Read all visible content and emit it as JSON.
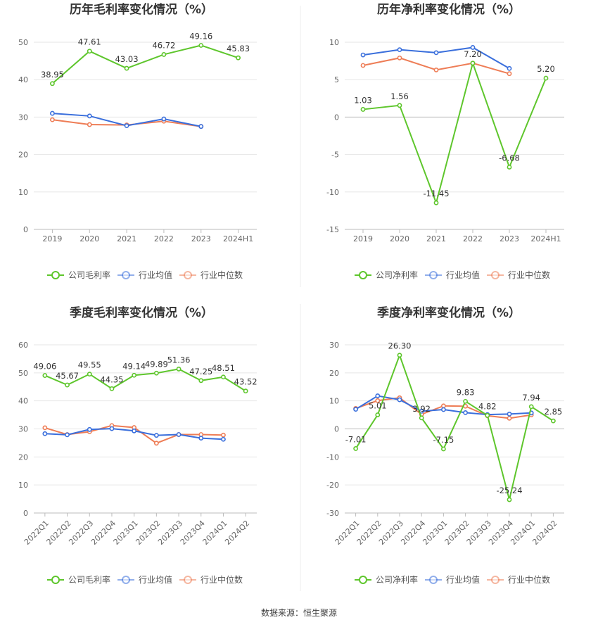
{
  "source_label": "数据来源：恒生聚源",
  "colors": {
    "company": "#5ec62c",
    "industry_avg": "#3a6fdc",
    "industry_median": "#ee7d56"
  },
  "chart_data": [
    {
      "type": "line",
      "title": "历年毛利率变化情况（%）",
      "categories": [
        "2019",
        "2020",
        "2021",
        "2022",
        "2023",
        "2024H1"
      ],
      "ylim": [
        0,
        50
      ],
      "yticks": [
        0,
        10,
        20,
        30,
        40,
        50
      ],
      "grid": true,
      "legend_position": "bottom",
      "series": [
        {
          "name": "公司毛利率",
          "values": [
            38.95,
            47.61,
            43.03,
            46.72,
            49.16,
            45.83
          ],
          "labels": [
            "38.95",
            "47.61",
            "43.03",
            "46.72",
            "49.16",
            "45.83"
          ]
        },
        {
          "name": "行业均值",
          "values": [
            31.0,
            30.3,
            27.7,
            29.5,
            27.5,
            null
          ]
        },
        {
          "name": "行业中位数",
          "values": [
            29.3,
            28.0,
            27.9,
            28.9,
            27.5,
            null
          ]
        }
      ]
    },
    {
      "type": "line",
      "title": "历年净利率变化情况（%）",
      "categories": [
        "2019",
        "2020",
        "2021",
        "2022",
        "2023",
        "2024H1"
      ],
      "ylim": [
        -15,
        10
      ],
      "yticks": [
        -15,
        -10,
        -5,
        0,
        5,
        10
      ],
      "grid": true,
      "legend_position": "bottom",
      "series": [
        {
          "name": "公司净利率",
          "values": [
            1.03,
            1.56,
            -11.45,
            7.2,
            -6.68,
            5.2
          ],
          "labels": [
            "1.03",
            "1.56",
            "-11.45",
            "7.20",
            "-6.68",
            "5.20"
          ]
        },
        {
          "name": "行业均值",
          "values": [
            8.3,
            9.0,
            8.6,
            9.3,
            6.5,
            null
          ]
        },
        {
          "name": "行业中位数",
          "values": [
            6.9,
            7.9,
            6.3,
            7.2,
            5.8,
            null
          ]
        }
      ]
    },
    {
      "type": "line",
      "title": "季度毛利率变化情况（%）",
      "categories": [
        "2022Q1",
        "2022Q2",
        "2022Q3",
        "2022Q4",
        "2023Q1",
        "2023Q2",
        "2023Q3",
        "2023Q4",
        "2024Q1",
        "2024Q2"
      ],
      "ylim": [
        0,
        60
      ],
      "yticks": [
        0,
        10,
        20,
        30,
        40,
        50,
        60
      ],
      "grid": true,
      "legend_position": "bottom",
      "series": [
        {
          "name": "公司毛利率",
          "values": [
            49.06,
            45.67,
            49.55,
            44.35,
            49.14,
            49.89,
            51.36,
            47.25,
            48.51,
            43.52
          ],
          "labels": [
            "49.06",
            "45.67",
            "49.55",
            "44.35",
            "49.14",
            "49.89",
            "51.36",
            "47.25",
            "48.51",
            "43.52"
          ]
        },
        {
          "name": "行业均值",
          "values": [
            28.3,
            27.9,
            29.8,
            30.1,
            29.3,
            27.7,
            28.0,
            26.7,
            26.3,
            null
          ]
        },
        {
          "name": "行业中位数",
          "values": [
            30.4,
            28.0,
            29.0,
            31.2,
            30.5,
            24.9,
            28.0,
            28.0,
            27.8,
            null
          ]
        }
      ]
    },
    {
      "type": "line",
      "title": "季度净利率变化情况（%）",
      "categories": [
        "2022Q1",
        "2022Q2",
        "2022Q3",
        "2022Q4",
        "2023Q1",
        "2023Q2",
        "2023Q3",
        "2023Q4",
        "2024Q1",
        "2024Q2"
      ],
      "ylim": [
        -30,
        30
      ],
      "yticks": [
        -30,
        -20,
        -10,
        0,
        10,
        20,
        30
      ],
      "grid": true,
      "legend_position": "bottom",
      "series": [
        {
          "name": "公司净利率",
          "values": [
            -7.01,
            5.01,
            26.3,
            3.92,
            -7.15,
            9.83,
            4.82,
            -25.24,
            7.94,
            2.85
          ],
          "labels": [
            "-7.01",
            "5.01",
            "26.30",
            "3.92",
            "-7.15",
            "9.83",
            "4.82",
            "-25.24",
            "7.94",
            "2.85"
          ]
        },
        {
          "name": "行业均值",
          "values": [
            7.0,
            11.8,
            10.4,
            6.3,
            6.9,
            5.8,
            5.1,
            5.3,
            5.7,
            null
          ]
        },
        {
          "name": "行业中位数",
          "values": [
            7.3,
            10.1,
            11.1,
            5.2,
            8.2,
            8.1,
            4.7,
            3.8,
            5.0,
            null
          ]
        }
      ]
    }
  ]
}
